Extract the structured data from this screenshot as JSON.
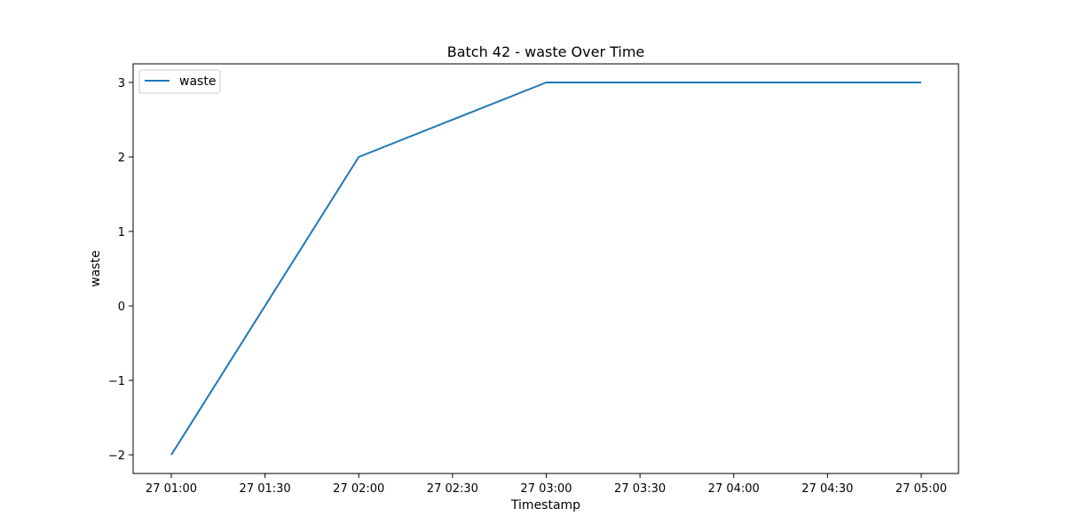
{
  "chart_data": {
    "type": "line",
    "title": "Batch 42 - waste Over Time",
    "xlabel": "Timestamp",
    "ylabel": "waste",
    "x_tick_labels": [
      "27 01:00",
      "27 01:30",
      "27 02:00",
      "27 02:30",
      "27 03:00",
      "27 03:30",
      "27 04:00",
      "27 04:30",
      "27 05:00"
    ],
    "y_tick_labels": [
      "−2",
      "−1",
      "0",
      "1",
      "2",
      "3"
    ],
    "y_ticks": [
      -2,
      -1,
      0,
      1,
      2,
      3
    ],
    "x": [
      "27 01:00",
      "27 02:00",
      "27 03:00",
      "27 04:00",
      "27 05:00"
    ],
    "series": [
      {
        "name": "waste",
        "values": [
          -2,
          2,
          3,
          3,
          3
        ],
        "color": "#1f77b4"
      }
    ],
    "ylim": [
      -2.25,
      3.25
    ],
    "grid": false,
    "legend_position": "top-left"
  }
}
